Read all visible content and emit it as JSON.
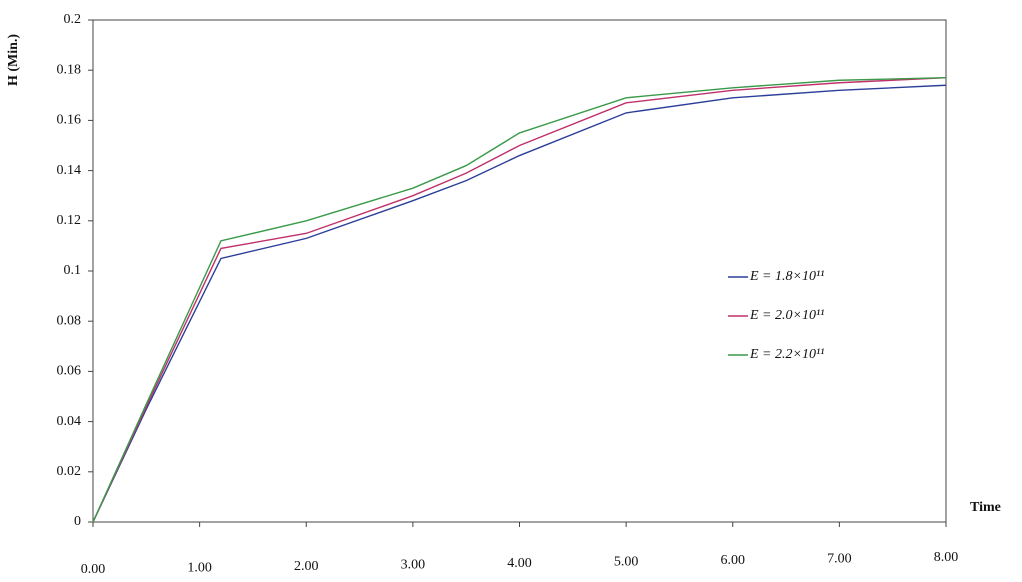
{
  "chart_data": {
    "type": "line",
    "y_label": "H (Min.)",
    "x_label": "Time",
    "x": [
      0,
      0.5,
      1.2,
      2,
      3,
      3.5,
      4,
      5,
      6,
      7,
      8
    ],
    "series": [
      {
        "name": "E = 1.8×10¹¹",
        "color": "#2b3f9a",
        "values": [
          0,
          0.045,
          0.105,
          0.113,
          0.128,
          0.136,
          0.146,
          0.163,
          0.169,
          0.172,
          0.174
        ]
      },
      {
        "name": "E = 2.0×10¹¹",
        "color": "#c0306a",
        "values": [
          0,
          0.046,
          0.109,
          0.115,
          0.13,
          0.139,
          0.15,
          0.167,
          0.172,
          0.175,
          0.177
        ]
      },
      {
        "name": "E = 2.2×10¹¹",
        "color": "#3a9a4a",
        "values": [
          0,
          0.047,
          0.112,
          0.12,
          0.133,
          0.142,
          0.155,
          0.169,
          0.173,
          0.176,
          0.177
        ]
      }
    ],
    "xlim": [
      0,
      8
    ],
    "ylim": [
      0,
      0.2
    ],
    "xticks": [
      {
        "value": 0,
        "label": "0.00"
      },
      {
        "value": 1,
        "label": "1.00"
      },
      {
        "value": 2,
        "label": "2.00"
      },
      {
        "value": 3,
        "label": "3.00"
      },
      {
        "value": 4,
        "label": "4.00"
      },
      {
        "value": 5,
        "label": "5.00"
      },
      {
        "value": 6,
        "label": "6.00"
      },
      {
        "value": 7,
        "label": "7.00"
      },
      {
        "value": 8,
        "label": "8.00"
      }
    ],
    "yticks": [
      0,
      0.02,
      0.04,
      0.06,
      0.08,
      0.1,
      0.12,
      0.14,
      0.16,
      0.18,
      0.2
    ],
    "grid": false
  }
}
